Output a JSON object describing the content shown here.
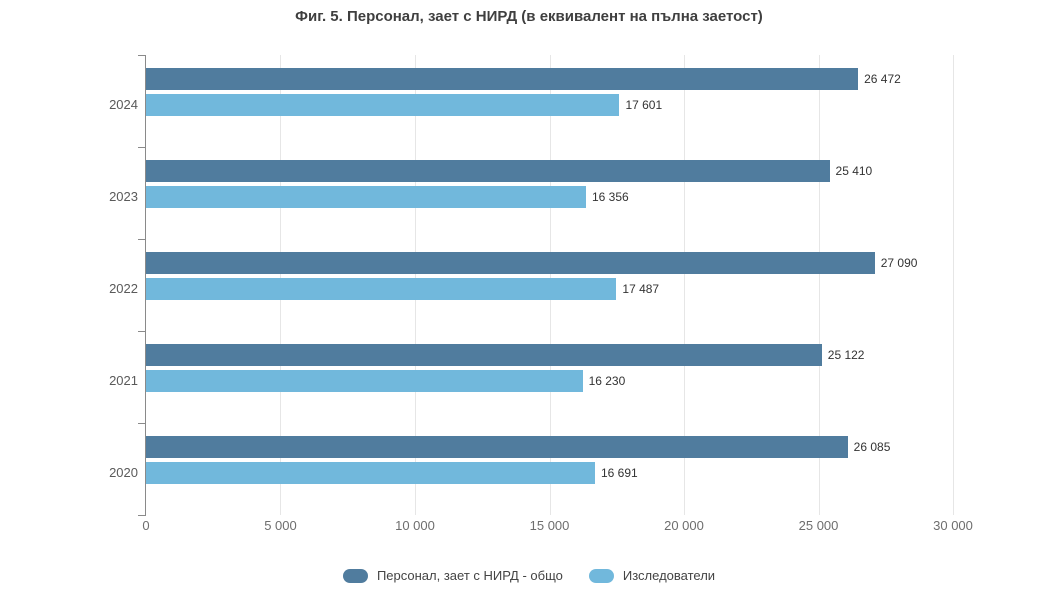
{
  "chart_data": {
    "type": "bar",
    "orientation": "horizontal",
    "title": "Фиг. 5. Персонал, зает с НИРД (в еквивалент на пълна заетост)",
    "categories": [
      "2024",
      "2023",
      "2022",
      "2021",
      "2020"
    ],
    "series": [
      {
        "name": "Персонал, зает с НИРД - общо",
        "color": "#507c9e",
        "values": [
          26472,
          25410,
          27090,
          25122,
          26085
        ],
        "labels": [
          "26 472",
          "25 410",
          "27 090",
          "25 122",
          "26 085"
        ]
      },
      {
        "name": "Изследователи",
        "color": "#71b8dc",
        "values": [
          17601,
          16356,
          17487,
          16230,
          16691
        ],
        "labels": [
          "17 601",
          "16 356",
          "17 487",
          "16 230",
          "16 691"
        ]
      }
    ],
    "xlim": [
      0,
      30000
    ],
    "x_ticks": [
      0,
      5000,
      10000,
      15000,
      20000,
      25000,
      30000
    ],
    "x_tick_labels": [
      "0",
      "5 000",
      "10 000",
      "15 000",
      "20 000",
      "25 000",
      "30 000"
    ],
    "grid": true,
    "legend_position": "bottom",
    "colors": {
      "axis": "#8a8a8a",
      "gridline": "#e6e6e6",
      "title_text": "#3f3f3f",
      "value_label_text": "#333333",
      "category_label_text": "#5a5a5a",
      "tick_label_text": "#6e6e6e",
      "legend_text": "#444444",
      "background": "#ffffff"
    }
  }
}
